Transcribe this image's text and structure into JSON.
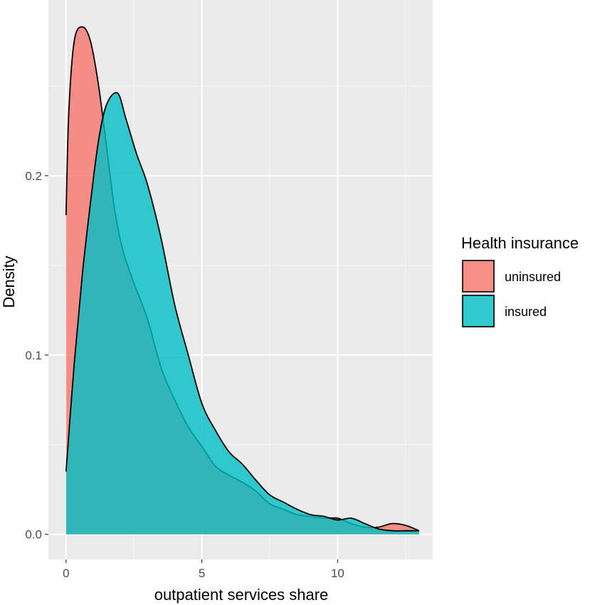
{
  "chart_data": {
    "type": "area",
    "subtype": "density",
    "xlabel": "outpatient services share",
    "ylabel": "Density",
    "xlim": [
      -0.65,
      13.5
    ],
    "ylim": [
      -0.014,
      0.298
    ],
    "x_ticks": [
      0,
      5,
      10
    ],
    "x_tick_labels": [
      "0",
      "5",
      "10"
    ],
    "y_ticks": [
      0.0,
      0.1,
      0.2
    ],
    "y_tick_labels": [
      "0.0",
      "0.1",
      "0.2"
    ],
    "grid": true,
    "legend": {
      "title": "Health insurance",
      "position": "right",
      "entries": [
        "uninsured",
        "insured"
      ]
    },
    "series": [
      {
        "name": "uninsured",
        "color": "#F8766D",
        "x": [
          0,
          0.1,
          0.3,
          0.6,
          0.9,
          1.2,
          1.5,
          1.8,
          2.1,
          2.5,
          3.0,
          3.5,
          4.0,
          4.5,
          5.0,
          5.5,
          6.0,
          6.5,
          7.0,
          7.5,
          8.0,
          8.5,
          9.0,
          9.5,
          10.0,
          10.5,
          11.0,
          11.5,
          12.0,
          12.5,
          13.0
        ],
        "y": [
          0.178,
          0.235,
          0.275,
          0.283,
          0.275,
          0.25,
          0.215,
          0.18,
          0.158,
          0.14,
          0.12,
          0.093,
          0.075,
          0.06,
          0.049,
          0.038,
          0.033,
          0.029,
          0.024,
          0.017,
          0.014,
          0.011,
          0.01,
          0.009,
          0.009,
          0.006,
          0.004,
          0.004,
          0.006,
          0.005,
          0.002
        ]
      },
      {
        "name": "insured",
        "color": "#00BFC4",
        "x": [
          0,
          0.3,
          0.6,
          0.9,
          1.2,
          1.5,
          1.9,
          2.2,
          2.6,
          3.0,
          3.5,
          4.0,
          4.5,
          5.0,
          5.5,
          6.0,
          6.5,
          7.0,
          7.5,
          8.0,
          8.5,
          9.0,
          9.5,
          10.0,
          10.5,
          11.0,
          11.5,
          12.0,
          12.5,
          13.0
        ],
        "y": [
          0.035,
          0.095,
          0.145,
          0.185,
          0.22,
          0.24,
          0.246,
          0.232,
          0.212,
          0.195,
          0.165,
          0.128,
          0.1,
          0.073,
          0.058,
          0.046,
          0.039,
          0.03,
          0.022,
          0.018,
          0.014,
          0.011,
          0.01,
          0.008,
          0.009,
          0.006,
          0.003,
          0.002,
          0.002,
          0.002
        ]
      }
    ]
  }
}
